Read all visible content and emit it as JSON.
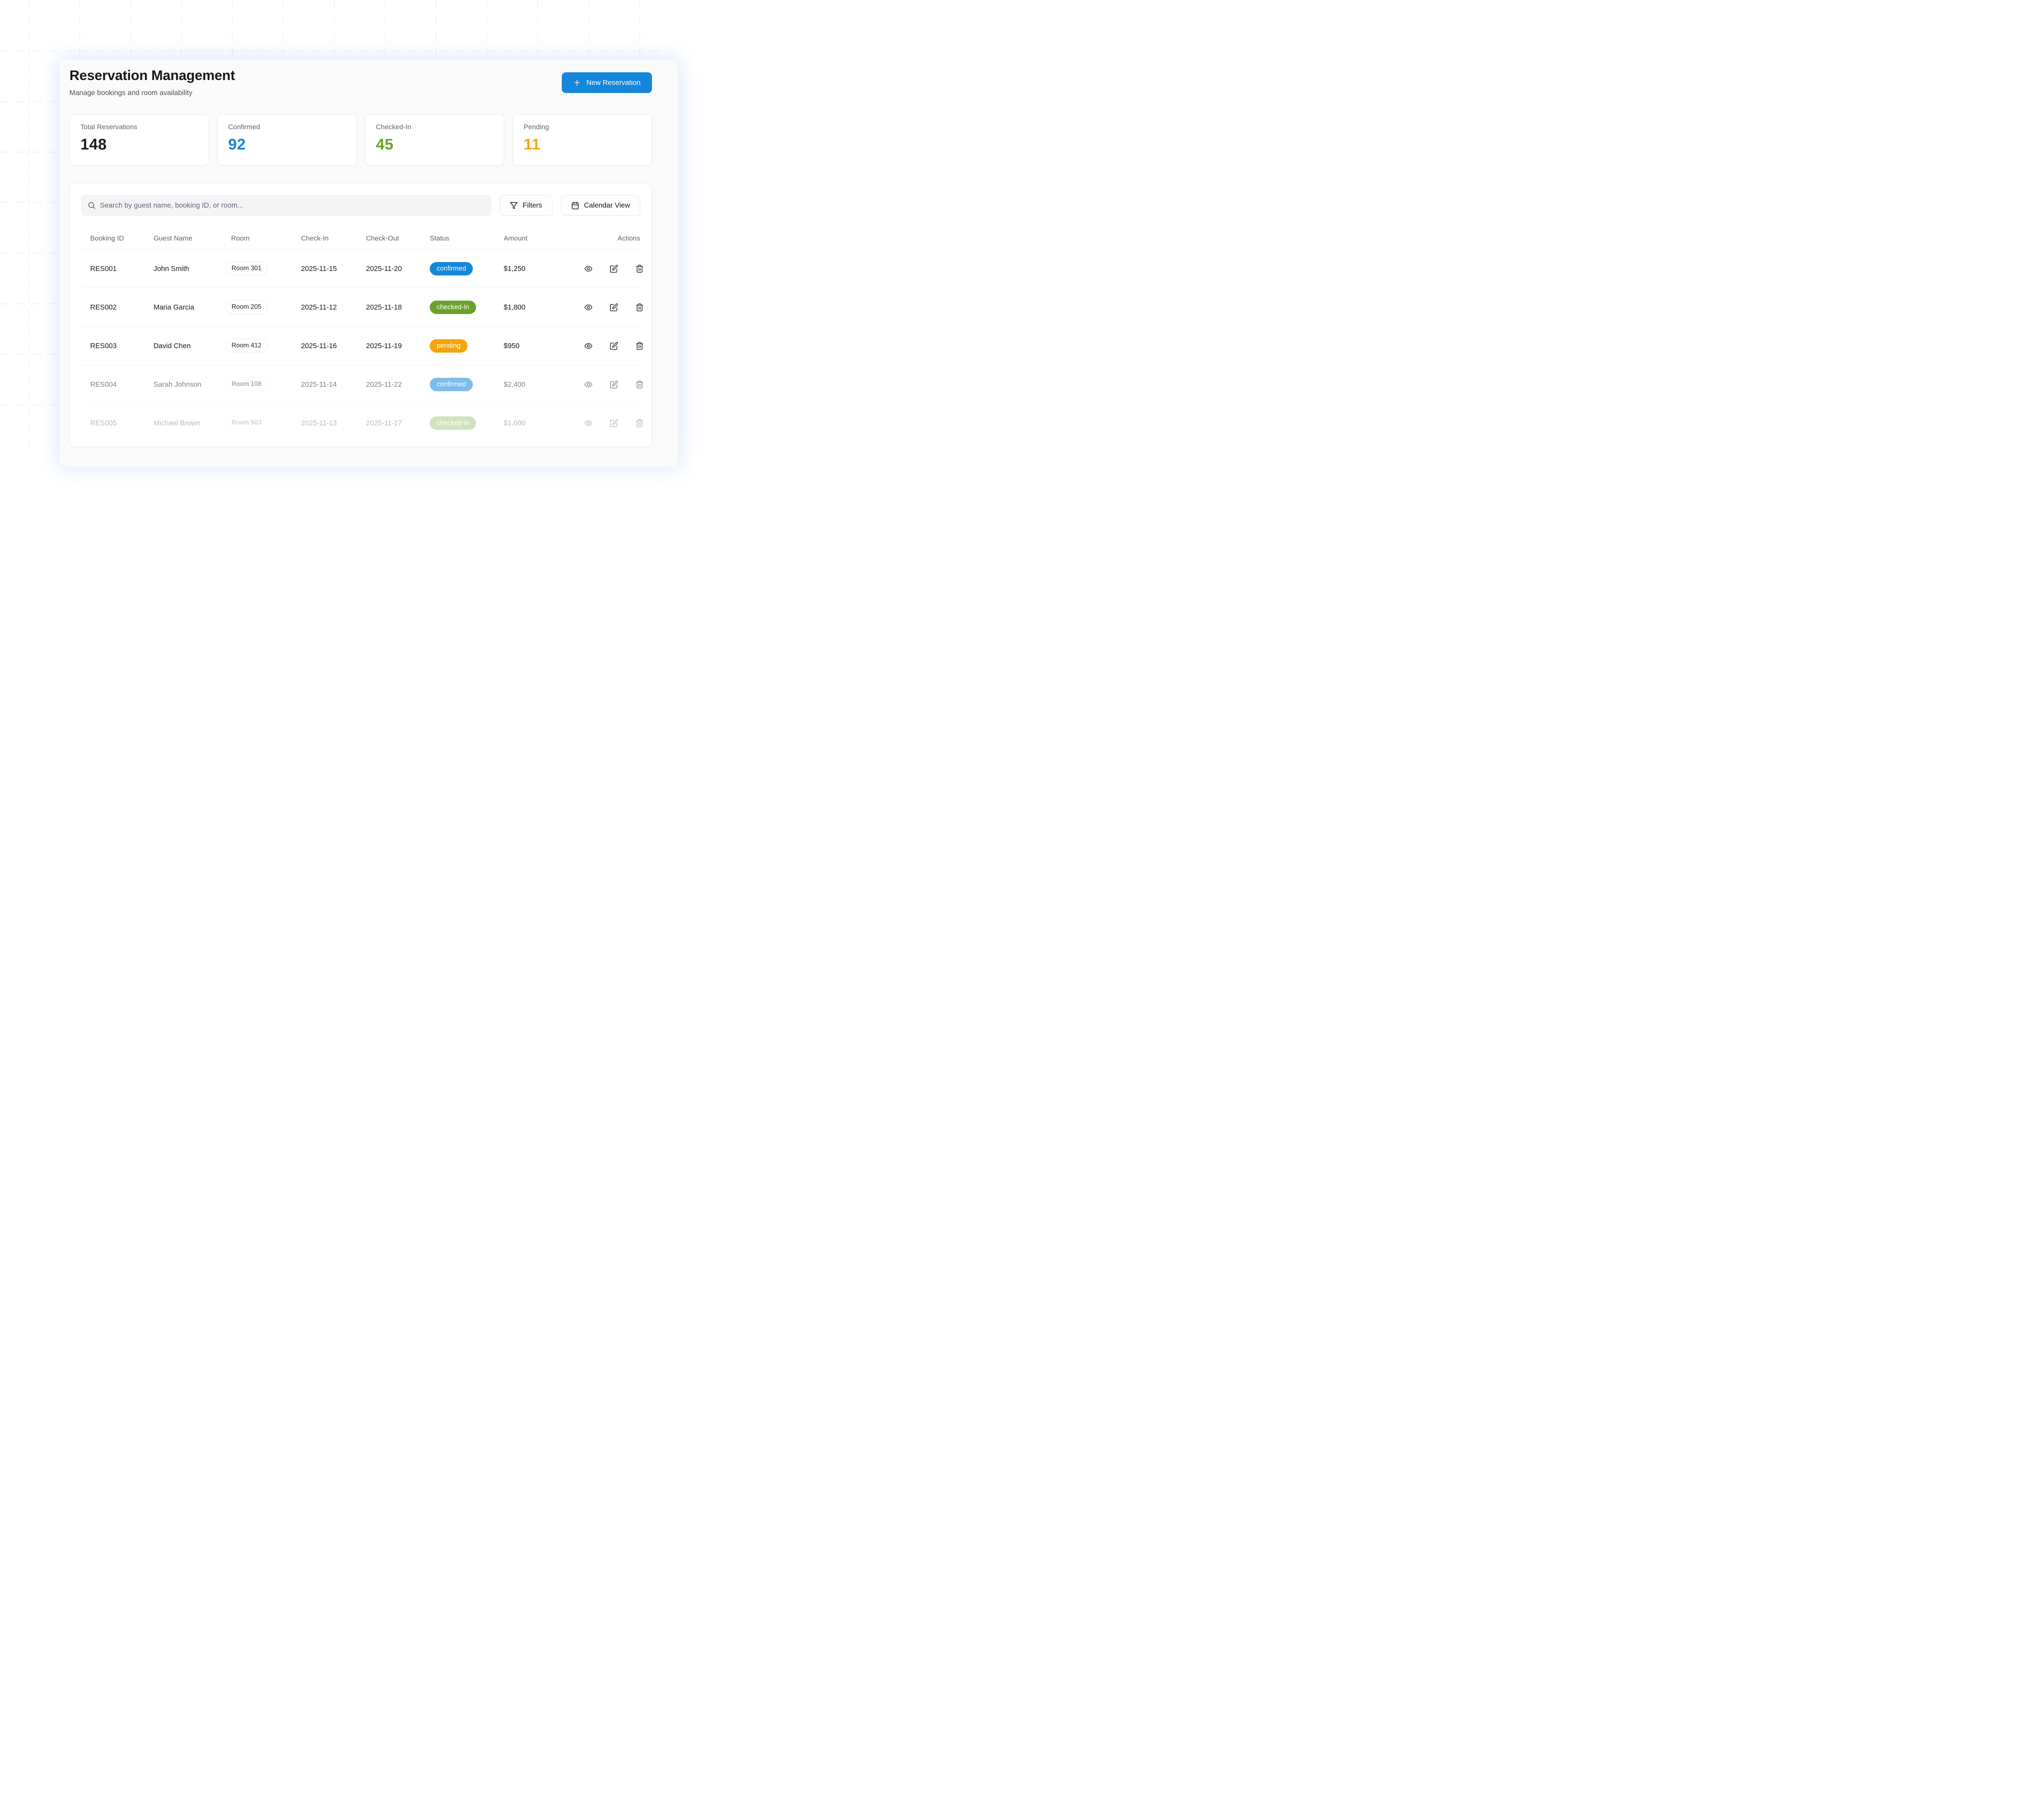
{
  "page": {
    "title": "Reservation Management",
    "subtitle": "Manage bookings and room availability"
  },
  "header": {
    "new_reservation_label": "New Reservation"
  },
  "stats": [
    {
      "label": "Total Reservations",
      "value": "148",
      "color": "#1b1e23"
    },
    {
      "label": "Confirmed",
      "value": "92",
      "color": "#1487db"
    },
    {
      "label": "Checked-In",
      "value": "45",
      "color": "#6ba32a"
    },
    {
      "label": "Pending",
      "value": "11",
      "color": "#f2a50c"
    }
  ],
  "toolbar": {
    "search_placeholder": "Search by guest name, booking ID, or room...",
    "filters_label": "Filters",
    "calendar_label": "Calendar View"
  },
  "status_colors": {
    "confirmed": "#1487db",
    "checked-in": "#6ba32a",
    "pending": "#f2a50c"
  },
  "table": {
    "columns": [
      "Booking ID",
      "Guest Name",
      "Room",
      "Check-In",
      "Check-Out",
      "Status",
      "Amount",
      "Actions"
    ],
    "rows": [
      {
        "booking_id": "RES001",
        "guest": "John Smith",
        "room": "Room 301",
        "check_in": "2025-11-15",
        "check_out": "2025-11-20",
        "status": "confirmed",
        "amount": "$1,250",
        "opacity": 1
      },
      {
        "booking_id": "RES002",
        "guest": "Maria Garcia",
        "room": "Room 205",
        "check_in": "2025-11-12",
        "check_out": "2025-11-18",
        "status": "checked-in",
        "amount": "$1,800",
        "opacity": 1
      },
      {
        "booking_id": "RES003",
        "guest": "David Chen",
        "room": "Room 412",
        "check_in": "2025-11-16",
        "check_out": "2025-11-19",
        "status": "pending",
        "amount": "$950",
        "opacity": 1
      },
      {
        "booking_id": "RES004",
        "guest": "Sarah Johnson",
        "room": "Room 108",
        "check_in": "2025-11-14",
        "check_out": "2025-11-22",
        "status": "confirmed",
        "amount": "$2,400",
        "opacity": 0.55
      },
      {
        "booking_id": "RES005",
        "guest": "Michael Brown",
        "room": "Room 503",
        "check_in": "2025-11-13",
        "check_out": "2025-11-17",
        "status": "checked-in",
        "amount": "$1,600",
        "opacity": 0.3
      }
    ]
  }
}
